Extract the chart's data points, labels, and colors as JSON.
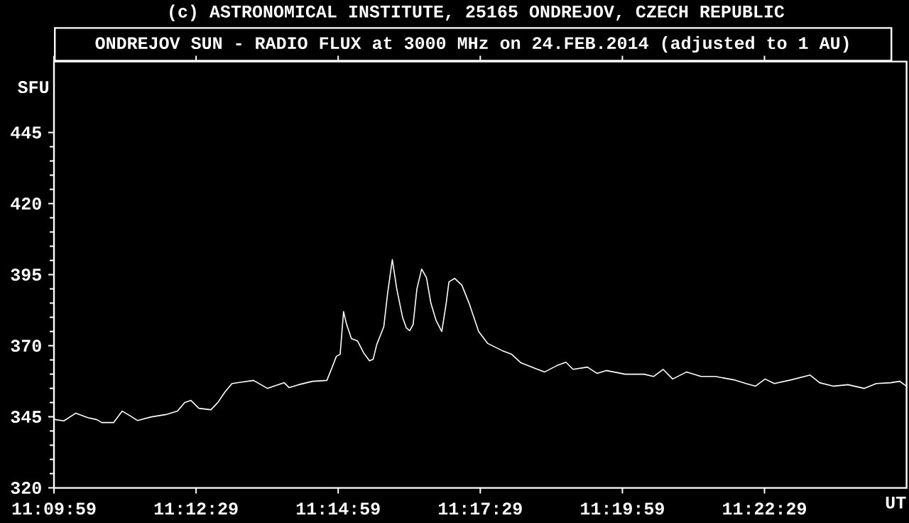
{
  "chart_data": {
    "type": "line",
    "title": "ONDREJOV SUN - RADIO FLUX at 3000 MHz on 24.FEB.2014 (adjusted to 1 AU)",
    "annotations": [
      "(c) ASTRONOMICAL INSTITUTE, 25165 ONDREJOV, CZECH REPUBLIC"
    ],
    "ylabel": "SFU",
    "xlabel": "UT",
    "xlim": [
      11.166389,
      11.416389
    ],
    "ylim": [
      320,
      470
    ],
    "xticks": [
      {
        "value": 11.166389,
        "label": "11:09:59"
      },
      {
        "value": 11.208056,
        "label": "11:12:29"
      },
      {
        "value": 11.249722,
        "label": "11:14:59"
      },
      {
        "value": 11.291389,
        "label": "11:17:29"
      },
      {
        "value": 11.333056,
        "label": "11:19:59"
      },
      {
        "value": 11.374722,
        "label": "11:22:29"
      }
    ],
    "yticks": [
      320,
      345,
      370,
      395,
      420,
      445
    ],
    "grid": false,
    "marker": "none",
    "line_style": "solid",
    "series": [
      {
        "color": "#ffffff",
        "x": [
          11.1665,
          11.1669,
          11.1693,
          11.1728,
          11.1763,
          11.179,
          11.1804,
          11.1839,
          11.1864,
          11.1888,
          11.1909,
          11.195,
          11.1992,
          11.2026,
          11.2047,
          11.2065,
          11.2089,
          11.2124,
          11.2144,
          11.2165,
          11.2186,
          11.2214,
          11.2249,
          11.229,
          11.2339,
          11.2353,
          11.2381,
          11.2422,
          11.2464,
          11.2478,
          11.2492,
          11.2503,
          11.2513,
          11.2522,
          11.2536,
          11.2554,
          11.2572,
          11.2589,
          11.26,
          11.261,
          11.2631,
          11.2642,
          11.2656,
          11.2669,
          11.2686,
          11.2697,
          11.2707,
          11.2717,
          11.2728,
          11.2742,
          11.2756,
          11.2769,
          11.2784,
          11.2801,
          11.2814,
          11.2822,
          11.2839,
          11.286,
          11.2881,
          11.2909,
          11.2936,
          11.2978,
          11.3006,
          11.3033,
          11.3075,
          11.3103,
          11.3138,
          11.3165,
          11.3186,
          11.3228,
          11.3256,
          11.3283,
          11.3339,
          11.3394,
          11.3422,
          11.345,
          11.3478,
          11.3519,
          11.3561,
          11.3603,
          11.3658,
          11.3693,
          11.3721,
          11.3749,
          11.3776,
          11.3825,
          11.3881,
          11.3909,
          11.395,
          11.3992,
          11.404,
          11.4075,
          11.4117,
          11.4144,
          11.4163
        ],
        "values": [
          344.2,
          344.0,
          343.6,
          346.3,
          344.7,
          344.0,
          343.0,
          343.0,
          347.0,
          345.3,
          343.7,
          345.0,
          345.8,
          347.0,
          350.0,
          350.8,
          348.0,
          347.5,
          350.0,
          353.7,
          356.7,
          357.2,
          357.8,
          355.0,
          357.0,
          355.3,
          356.3,
          357.5,
          357.8,
          362.0,
          366.3,
          367.0,
          382.0,
          377.5,
          372.5,
          371.7,
          367.5,
          364.7,
          365.3,
          370.3,
          376.7,
          388.3,
          400.3,
          390.0,
          380.0,
          376.3,
          375.3,
          377.5,
          390.0,
          397.0,
          394.0,
          385.0,
          379.0,
          375.0,
          385.0,
          392.5,
          393.7,
          391.3,
          385.0,
          375.0,
          370.8,
          368.3,
          367.0,
          364.0,
          362.0,
          360.8,
          363.0,
          364.2,
          361.7,
          362.5,
          360.3,
          361.3,
          360.0,
          360.0,
          359.2,
          361.7,
          358.3,
          360.8,
          359.2,
          359.2,
          358.0,
          356.7,
          355.8,
          358.3,
          356.7,
          358.0,
          359.7,
          357.0,
          355.8,
          356.3,
          355.0,
          356.7,
          357.0,
          357.5,
          355.8
        ]
      }
    ]
  }
}
